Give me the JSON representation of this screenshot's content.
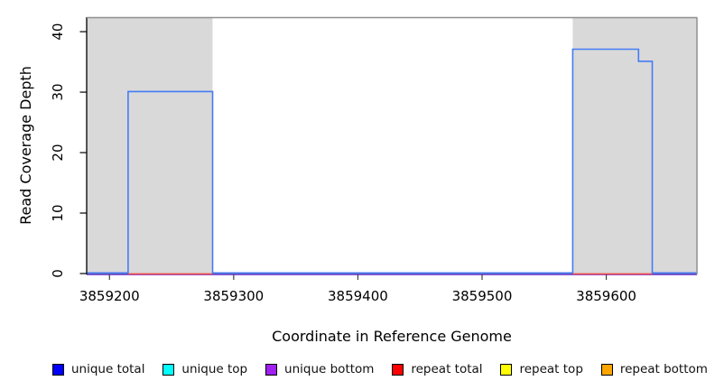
{
  "chart_data": {
    "type": "line",
    "title": "",
    "xlabel": "Coordinate in Reference Genome",
    "ylabel": "Read Coverage Depth",
    "x_ticks": [
      3859200,
      3859300,
      3859400,
      3859500,
      3859600
    ],
    "y_ticks": [
      0,
      10,
      20,
      30,
      40
    ],
    "x_range": [
      3859182,
      3859673
    ],
    "y_range": [
      0,
      42.4
    ],
    "grid": false,
    "legend_position": "bottom",
    "box_color": "#8f8f8f",
    "shaded_regions": [
      {
        "name": "repeat-region-left",
        "x0": 3859182,
        "x1": 3859283,
        "color": "#d9d9d9"
      },
      {
        "name": "repeat-region-right",
        "x0": 3859573,
        "x1": 3859673,
        "color": "#d9d9d9"
      }
    ],
    "series": [
      {
        "name": "unique bottom",
        "line_color": "#8859e0",
        "segments": [
          [
            [
              3859182,
              0
            ],
            [
              3859673,
              0
            ]
          ]
        ]
      },
      {
        "name": "repeat total",
        "line_color": "#f04c4c",
        "segments": [
          [
            [
              3859215,
              0
            ],
            [
              3859283,
              0
            ]
          ],
          [
            [
              3859573,
              0
            ],
            [
              3859637,
              0
            ]
          ]
        ]
      },
      {
        "name": "unique total",
        "line_color": "#447cf5",
        "segments": [
          [
            [
              3859182,
              0
            ],
            [
              3859215,
              0
            ],
            [
              3859215,
              30
            ],
            [
              3859283,
              30
            ],
            [
              3859283,
              0
            ],
            [
              3859573,
              0
            ],
            [
              3859573,
              37
            ],
            [
              3859626,
              37
            ],
            [
              3859626,
              35
            ],
            [
              3859637,
              35
            ],
            [
              3859637,
              0
            ],
            [
              3859673,
              0
            ]
          ]
        ]
      }
    ],
    "legend": [
      {
        "label": "unique total",
        "color": "#0000ff"
      },
      {
        "label": "unique top",
        "color": "#00ffff"
      },
      {
        "label": "unique bottom",
        "color": "#a020f0"
      },
      {
        "label": "repeat total",
        "color": "#ff0000"
      },
      {
        "label": "repeat top",
        "color": "#ffff00"
      },
      {
        "label": "repeat bottom",
        "color": "#ffa500"
      }
    ]
  }
}
